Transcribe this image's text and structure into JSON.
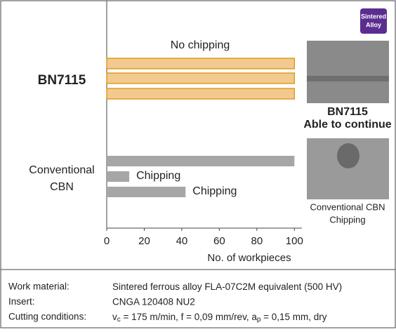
{
  "chart_data": {
    "type": "bar",
    "orientation": "horizontal",
    "groups": [
      {
        "label": [
          "BN7115"
        ],
        "color": "#f2c98e",
        "edge": "#d98c00",
        "values": [
          100,
          100,
          100
        ],
        "note": "No chipping"
      },
      {
        "label": [
          "Conventional",
          "CBN"
        ],
        "color": "#a6a6a6",
        "values": [
          100,
          12,
          42
        ],
        "bar_labels": [
          null,
          "Chipping",
          "Chipping"
        ]
      }
    ],
    "xlabel": "No. of workpieces",
    "xlim": [
      0,
      104
    ],
    "xticks": [
      0,
      20,
      40,
      60,
      80,
      100
    ]
  },
  "badge": [
    "Sintered",
    "Alloy"
  ],
  "images": [
    {
      "caption": [
        "BN7115",
        "Able to continue"
      ]
    },
    {
      "caption": [
        "Conventional CBN",
        "Chipping"
      ]
    }
  ],
  "conditions": [
    {
      "label": "Work material:",
      "value": [
        "Sintered ferrous alloy FLA-07C2M equivalent (500 HV)"
      ]
    },
    {
      "label": "Insert:",
      "value": [
        "CNGA 120408 NU2"
      ]
    },
    {
      "label": "Cutting conditions:",
      "value": [
        "v",
        "c",
        " = 175 m/min, f = 0,09 mm/rev, a",
        "p",
        " = 0,15 mm, dry"
      ]
    }
  ]
}
